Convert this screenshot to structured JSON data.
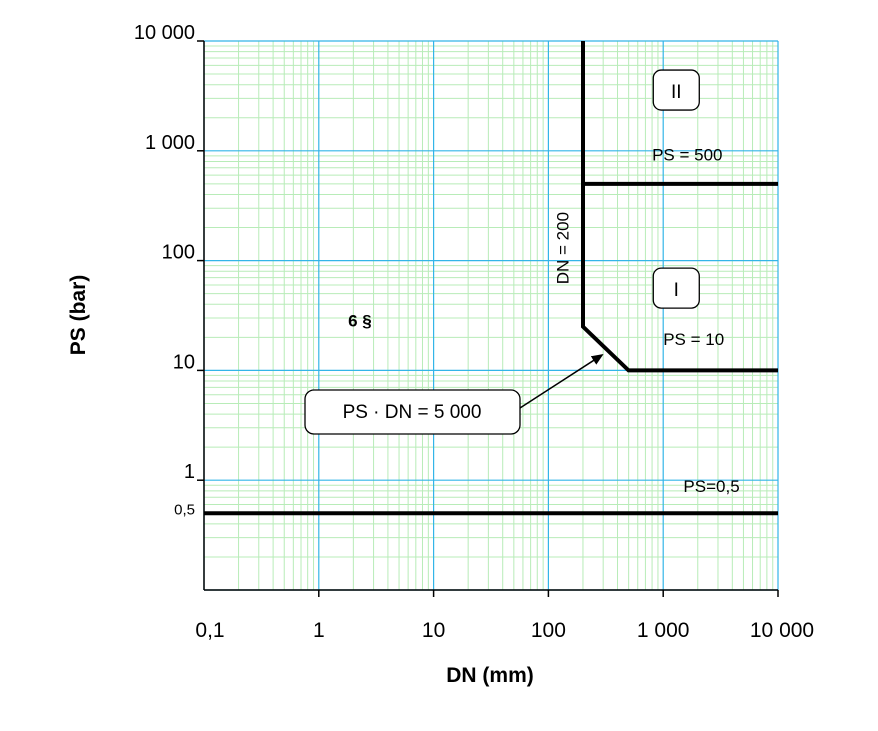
{
  "chart_data": {
    "type": "line",
    "xlabel": "DN (mm)",
    "ylabel": "PS (bar)",
    "x_scale": "log",
    "y_scale": "log",
    "xlim": [
      0.1,
      10000
    ],
    "ylim": [
      0.1,
      10000
    ],
    "x_ticks": [
      {
        "value": 0.1,
        "label": "0,1"
      },
      {
        "value": 1,
        "label": "1"
      },
      {
        "value": 10,
        "label": "10"
      },
      {
        "value": 100,
        "label": "100"
      },
      {
        "value": 1000,
        "label": "1 000"
      },
      {
        "value": 10000,
        "label": "10 000"
      }
    ],
    "y_ticks": [
      {
        "value": 0.5,
        "label": "0,5"
      },
      {
        "value": 1,
        "label": "1"
      },
      {
        "value": 10,
        "label": "10"
      },
      {
        "value": 100,
        "label": "100"
      },
      {
        "value": 1000,
        "label": "1 000"
      },
      {
        "value": 10000,
        "label": "10 000"
      }
    ],
    "grid": true,
    "series": [
      {
        "points": [
          [
            0.1,
            0.5
          ],
          [
            10000,
            0.5
          ]
        ]
      },
      {
        "points": [
          [
            200,
            10000
          ],
          [
            200,
            25
          ],
          [
            500,
            10
          ],
          [
            10000,
            10
          ]
        ]
      },
      {
        "points": [
          [
            200,
            500
          ],
          [
            10000,
            500
          ]
        ]
      }
    ],
    "annotations": [
      {
        "text": "PS=0,5",
        "x": 1500,
        "y": 0.78
      },
      {
        "text": "PS = 10",
        "x": 1000,
        "y": 17
      },
      {
        "text": "PS = 500",
        "x": 800,
        "y": 820
      },
      {
        "text": "DN = 200",
        "x": 150,
        "y": 130,
        "rotated": true
      },
      {
        "text": "6 §",
        "x": 1.8,
        "y": 25
      }
    ],
    "category_labels": [
      {
        "text": "II",
        "x": 1300,
        "y": 3500
      },
      {
        "text": "I",
        "x": 1300,
        "y": 55
      }
    ],
    "callout": {
      "text": "PS · DN = 5 000",
      "target_x": 330,
      "target_y": 15
    }
  }
}
